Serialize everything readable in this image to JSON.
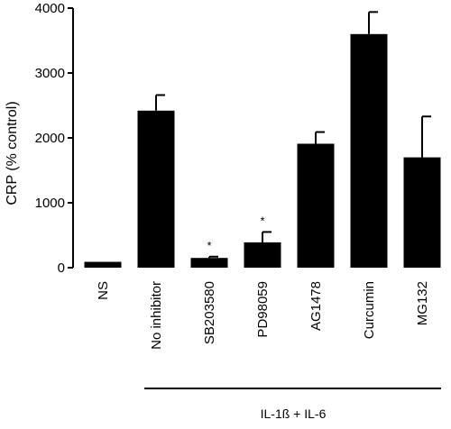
{
  "chart_data": {
    "type": "bar",
    "ylabel": "CRP (% control)",
    "ylim": [
      0,
      4000
    ],
    "yticks": [
      0,
      1000,
      2000,
      3000,
      4000
    ],
    "categories": [
      "NS",
      "No inhibitor",
      "SB203580",
      "PD98059",
      "AG1478",
      "Curcumin",
      "MG132"
    ],
    "values": [
      90,
      2420,
      150,
      390,
      1910,
      3600,
      1700
    ],
    "errors": [
      0,
      240,
      20,
      160,
      180,
      340,
      630
    ],
    "significance": [
      "",
      "",
      "*",
      "*",
      "",
      "",
      ""
    ],
    "group_label": "IL-1ß + IL-6",
    "bar_color": "#000000"
  }
}
